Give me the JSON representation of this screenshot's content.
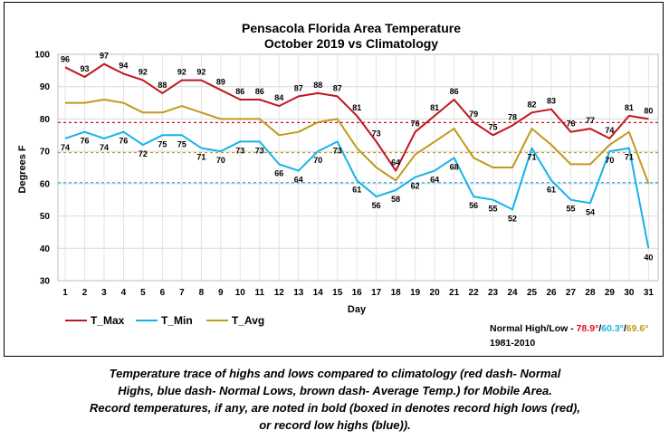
{
  "chart_data": {
    "type": "line",
    "title": "Pensacola Florida Area Temperature",
    "subtitle": "October 2019 vs Climatology",
    "xlabel": "Day",
    "ylabel": "Degrees F",
    "ylim": [
      30,
      100
    ],
    "yticks": [
      30,
      40,
      50,
      60,
      70,
      80,
      90,
      100
    ],
    "x": [
      1,
      2,
      3,
      4,
      5,
      6,
      7,
      8,
      9,
      10,
      11,
      12,
      13,
      14,
      15,
      16,
      17,
      18,
      19,
      20,
      21,
      22,
      23,
      24,
      25,
      26,
      27,
      28,
      29,
      30,
      31
    ],
    "grid": true,
    "series": [
      {
        "name": "T_Max",
        "color": "#c0161e",
        "values": [
          96,
          93,
          97,
          94,
          92,
          88,
          92,
          92,
          89,
          86,
          86,
          84,
          87,
          88,
          87,
          81,
          73,
          64,
          76,
          81,
          86,
          79,
          75,
          78,
          82,
          83,
          76,
          77,
          74,
          81,
          80
        ],
        "record_days": [
          1,
          2,
          3,
          4
        ]
      },
      {
        "name": "T_Min",
        "color": "#16b3e8",
        "values": [
          74,
          76,
          74,
          76,
          72,
          75,
          75,
          71,
          70,
          73,
          73,
          66,
          64,
          70,
          73,
          61,
          56,
          58,
          62,
          64,
          68,
          56,
          55,
          52,
          71,
          61,
          55,
          54,
          70,
          71,
          40
        ]
      },
      {
        "name": "T_Avg",
        "color": "#c09a1c",
        "values": [
          85,
          85,
          86,
          85,
          82,
          82,
          84,
          82,
          80,
          80,
          80,
          75,
          76,
          79,
          80,
          71,
          65,
          61,
          69,
          73,
          77,
          68,
          65,
          65,
          77,
          72,
          66,
          66,
          72,
          76,
          60
        ]
      }
    ],
    "reference_lines": [
      {
        "label": "Normal High",
        "value": 78.9,
        "color": "#c0161e"
      },
      {
        "label": "Normal Low",
        "value": 60.3,
        "color": "#16b3e8"
      },
      {
        "label": "Average",
        "value": 69.6,
        "color": "#c09a1c"
      }
    ],
    "legend_placement": "bottom-left",
    "normals_label": "Normal High/Low -",
    "normals_values": [
      "78.9°",
      "60.3°",
      "69.6°"
    ],
    "normals_period": "1981-2010"
  },
  "caption": {
    "lines": [
      "Temperature trace of highs and lows compared to climatology (red dash- Normal",
      "Highs, blue dash- Normal Lows, brown dash- Average Temp.) for Mobile Area.",
      "Record temperatures, if any, are noted in bold (boxed in denotes record high lows (red),",
      "or record low highs (blue))."
    ]
  }
}
